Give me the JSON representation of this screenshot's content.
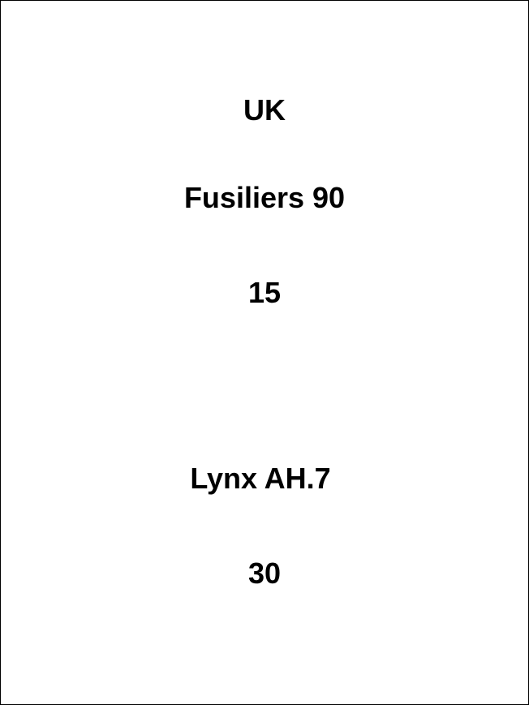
{
  "card": {
    "country": "UK",
    "unit": {
      "name": "Fusiliers 90",
      "value": "15"
    },
    "aircraft": {
      "name": "Lynx AH.7",
      "value": "30"
    }
  }
}
